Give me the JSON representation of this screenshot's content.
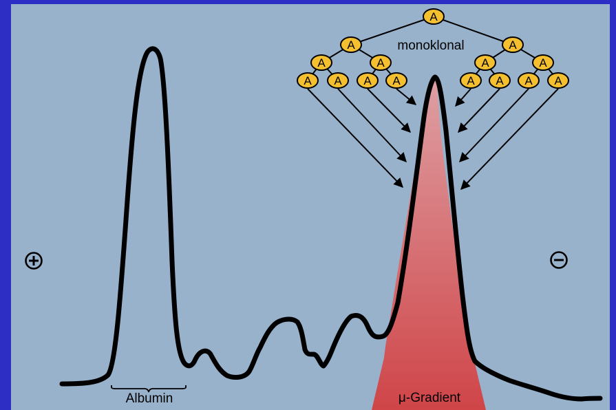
{
  "colors": {
    "frame": "#2d2fc4",
    "panel": "#98b2cc",
    "curve": "#000000",
    "node_fill": "#f5c030",
    "node_stroke": "#000000",
    "peak_top": "#dea0a4",
    "peak_bottom": "#cf4548"
  },
  "labels": {
    "monoklonal": "monoklonal",
    "albumin": "Albumin",
    "mu_gradient": "μ-Gradient",
    "plus_icon": "plus-pole-icon",
    "minus_icon": "minus-pole-icon"
  },
  "tree": {
    "node_letter": "A",
    "levels": [
      1,
      2,
      4,
      8
    ]
  }
}
